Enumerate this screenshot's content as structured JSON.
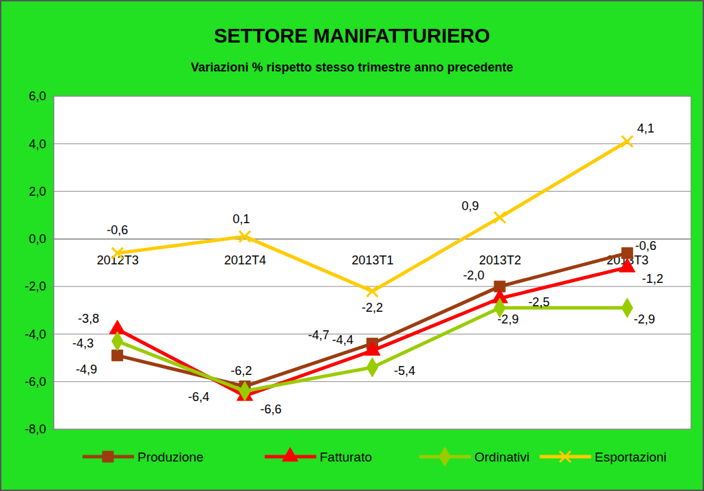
{
  "chart_data": {
    "type": "line",
    "title": "SETTORE MANIFATTURIERO",
    "subtitle": "Variazioni % rispetto stesso trimestre anno precedente",
    "categories": [
      "2012T3",
      "2012T4",
      "2013T1",
      "2013T2",
      "2013T3"
    ],
    "ylim": [
      -8,
      6
    ],
    "yticks": [
      {
        "value": -8,
        "label": "-8,0"
      },
      {
        "value": -6,
        "label": "-6,0"
      },
      {
        "value": -4,
        "label": "-4,0"
      },
      {
        "value": -2,
        "label": "-2,0"
      },
      {
        "value": 0,
        "label": "0,0"
      },
      {
        "value": 2,
        "label": "2,0"
      },
      {
        "value": 4,
        "label": "4,0"
      },
      {
        "value": 6,
        "label": "6,0"
      }
    ],
    "grid": true,
    "legend": "bottom",
    "data_labels": true,
    "series": [
      {
        "name": "Produzione",
        "color": "#9c3c10",
        "marker": "square",
        "values": [
          -4.9,
          -6.2,
          -4.4,
          -2.0,
          -0.6
        ],
        "value_labels": [
          "-4,9",
          "-6,2",
          "-4,4",
          "-2,0",
          "-0,6"
        ]
      },
      {
        "name": "Fatturato",
        "color": "#ff0000",
        "marker": "triangle",
        "values": [
          -3.8,
          -6.6,
          -4.7,
          -2.5,
          -1.2
        ],
        "value_labels": [
          "-3,8",
          "-6,6",
          "-4,7",
          "-2,5",
          "-1,2"
        ]
      },
      {
        "name": "Ordinativi",
        "color": "#99cc00",
        "marker": "diamond",
        "values": [
          -4.3,
          -6.4,
          -5.4,
          -2.9,
          -2.9
        ],
        "value_labels": [
          "-4,3",
          "-6,4",
          "-5,4",
          "-2,9",
          "-2,9"
        ]
      },
      {
        "name": "Esportazioni",
        "color": "#ffcc00",
        "marker": "x",
        "values": [
          -0.6,
          0.1,
          -2.2,
          0.9,
          4.1
        ],
        "value_labels": [
          "-0,6",
          "0,1",
          "-2,2",
          "0,9",
          "4,1"
        ]
      }
    ]
  }
}
